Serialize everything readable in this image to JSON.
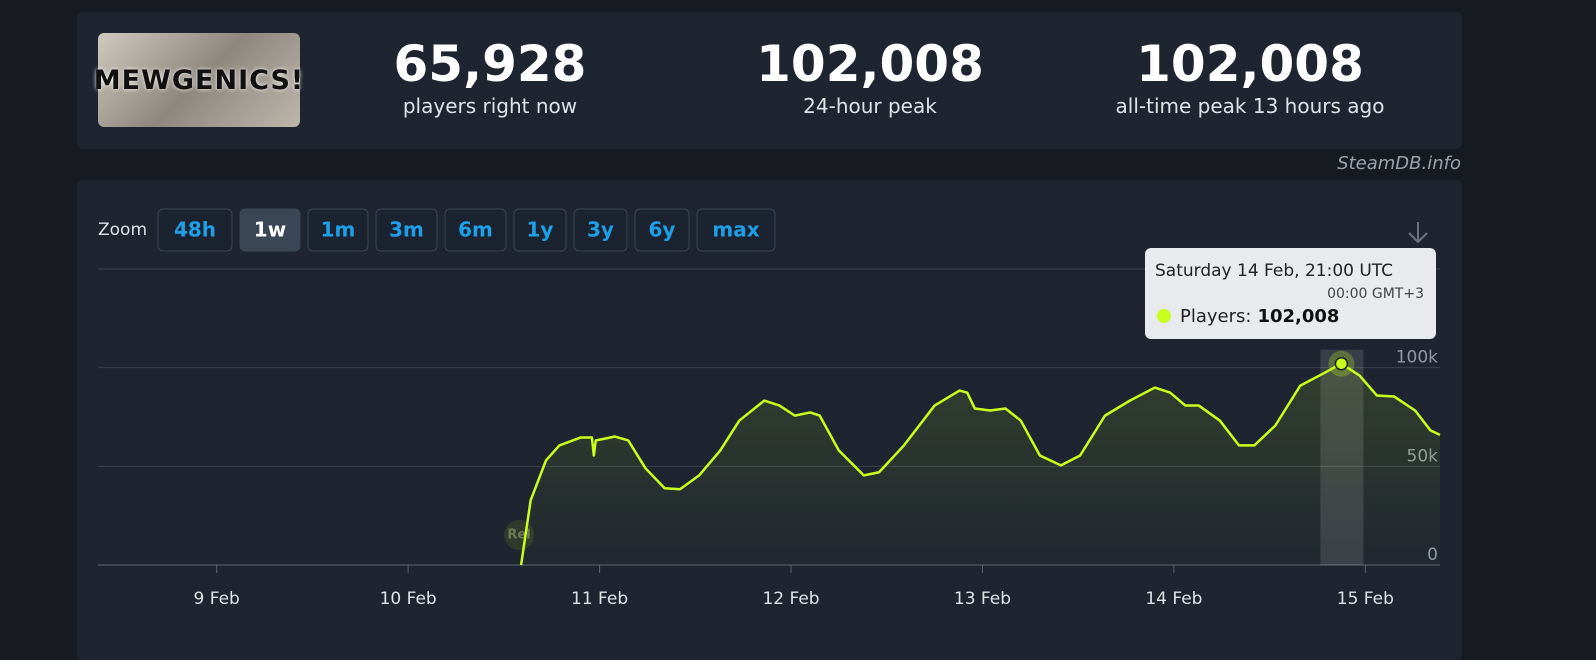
{
  "header": {
    "logo_text": "MEWGENICS!",
    "stats": [
      {
        "value": "65,928",
        "label": "players right now"
      },
      {
        "value": "102,008",
        "label": "24-hour peak"
      },
      {
        "value": "102,008",
        "label": "all-time peak 13 hours ago"
      }
    ],
    "source": "SteamDB.info"
  },
  "zoom": {
    "label": "Zoom",
    "options": [
      "48h",
      "1w",
      "1m",
      "3m",
      "6m",
      "1y",
      "3y",
      "6y",
      "max"
    ],
    "active": 1
  },
  "chart_data": {
    "type": "line",
    "x": [
      10.59,
      10.64,
      10.72,
      10.79,
      10.9,
      10.96,
      10.97,
      10.98,
      11.08,
      11.15,
      11.24,
      11.34,
      11.42,
      11.52,
      11.63,
      11.73,
      11.86,
      11.94,
      12.02,
      12.1,
      12.15,
      12.25,
      12.38,
      12.46,
      12.59,
      12.75,
      12.88,
      12.92,
      12.96,
      13.04,
      13.12,
      13.2,
      13.3,
      13.41,
      13.51,
      13.64,
      13.77,
      13.9,
      13.98,
      14.06,
      14.13,
      14.24,
      14.34,
      14.42,
      14.53,
      14.66,
      14.76,
      14.875,
      14.97,
      15.06,
      15.15,
      15.26,
      15.34,
      15.39
    ],
    "series": [
      {
        "color": "#c9ff1c",
        "values": [
          0,
          32800,
          53000,
          60600,
          64600,
          64600,
          55500,
          63100,
          65100,
          63100,
          49000,
          38900,
          38400,
          45400,
          58000,
          73200,
          83300,
          80800,
          75700,
          77300,
          75700,
          58000,
          45400,
          47000,
          60600,
          80800,
          88400,
          87400,
          79300,
          78300,
          79300,
          73200,
          55500,
          50500,
          55500,
          75700,
          83300,
          89900,
          87400,
          80800,
          80800,
          73200,
          60600,
          60600,
          70700,
          90900,
          96000,
          102008,
          96000,
          85900,
          85400,
          78300,
          68200,
          65928
        ]
      }
    ],
    "xlim": [
      8.38,
      15.39
    ],
    "xticks": [
      {
        "value": 9,
        "label": "9 Feb"
      },
      {
        "value": 10,
        "label": "10 Feb"
      },
      {
        "value": 11,
        "label": "11 Feb"
      },
      {
        "value": 12,
        "label": "12 Feb"
      },
      {
        "value": 13,
        "label": "13 Feb"
      },
      {
        "value": 14,
        "label": "14 Feb"
      },
      {
        "value": 15,
        "label": "15 Feb"
      }
    ],
    "ylim": [
      0,
      150000
    ],
    "yticks": [
      0,
      {
        "value": 50000,
        "label": "50k"
      },
      {
        "value": 100000,
        "label": "100k"
      }
    ],
    "grid": true,
    "annotations": [
      {
        "x": 10.59,
        "text": "Rel"
      }
    ],
    "tooltip": {
      "title": "Saturday 14 Feb, 21:00 UTC",
      "subtitle": "00:00 GMT+3",
      "label": "Players:",
      "value_label": "102,008"
    }
  }
}
